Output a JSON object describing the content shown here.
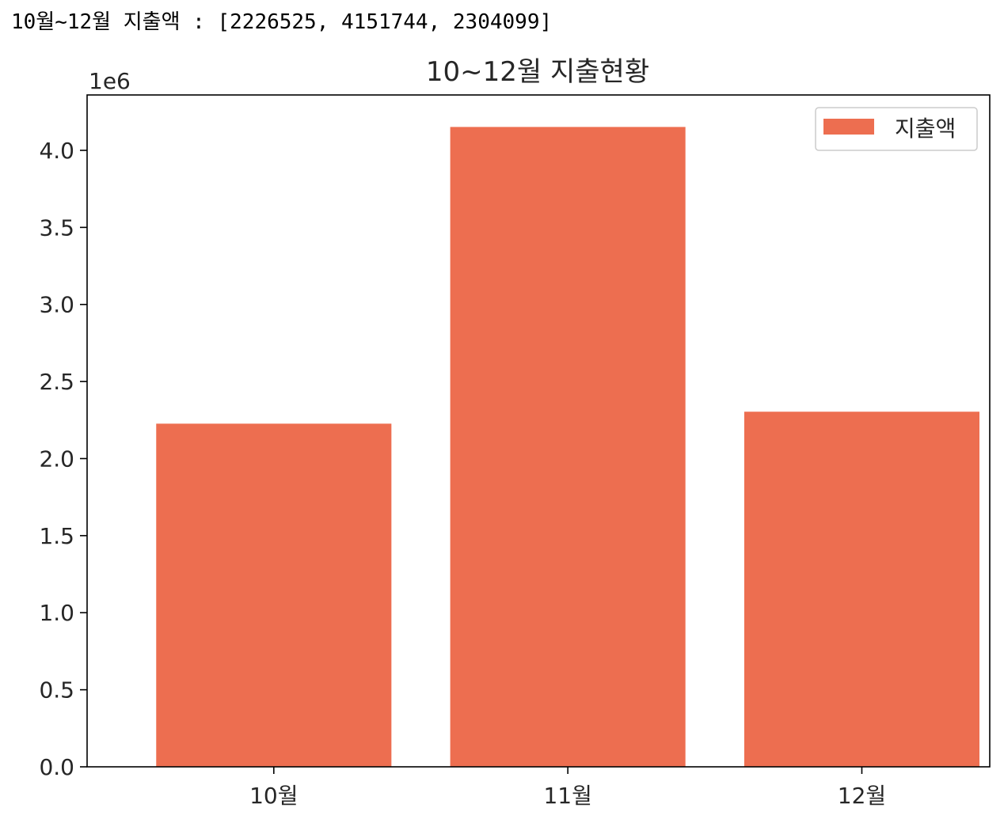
{
  "output": {
    "text": "10월~12월 지출액 : [2226525, 4151744, 2304099]"
  },
  "chart_data": {
    "type": "bar",
    "title": "10~12월 지출현황",
    "categories": [
      "10월",
      "11월",
      "12월"
    ],
    "series": [
      {
        "name": "지출액",
        "values": [
          2226525,
          4151744,
          2304099
        ],
        "color": "#ed6e50"
      }
    ],
    "xlabel": "",
    "ylabel": "",
    "ylim": [
      0,
      4359331
    ],
    "yticks": [
      0.0,
      0.5,
      1.0,
      1.5,
      2.0,
      2.5,
      3.0,
      3.5,
      4.0
    ],
    "ytick_labels": [
      "0.0",
      "0.5",
      "1.0",
      "1.5",
      "2.0",
      "2.5",
      "3.0",
      "3.5",
      "4.0"
    ],
    "y_offset_label": "1e6",
    "legend_position": "upper-right",
    "grid": false
  }
}
